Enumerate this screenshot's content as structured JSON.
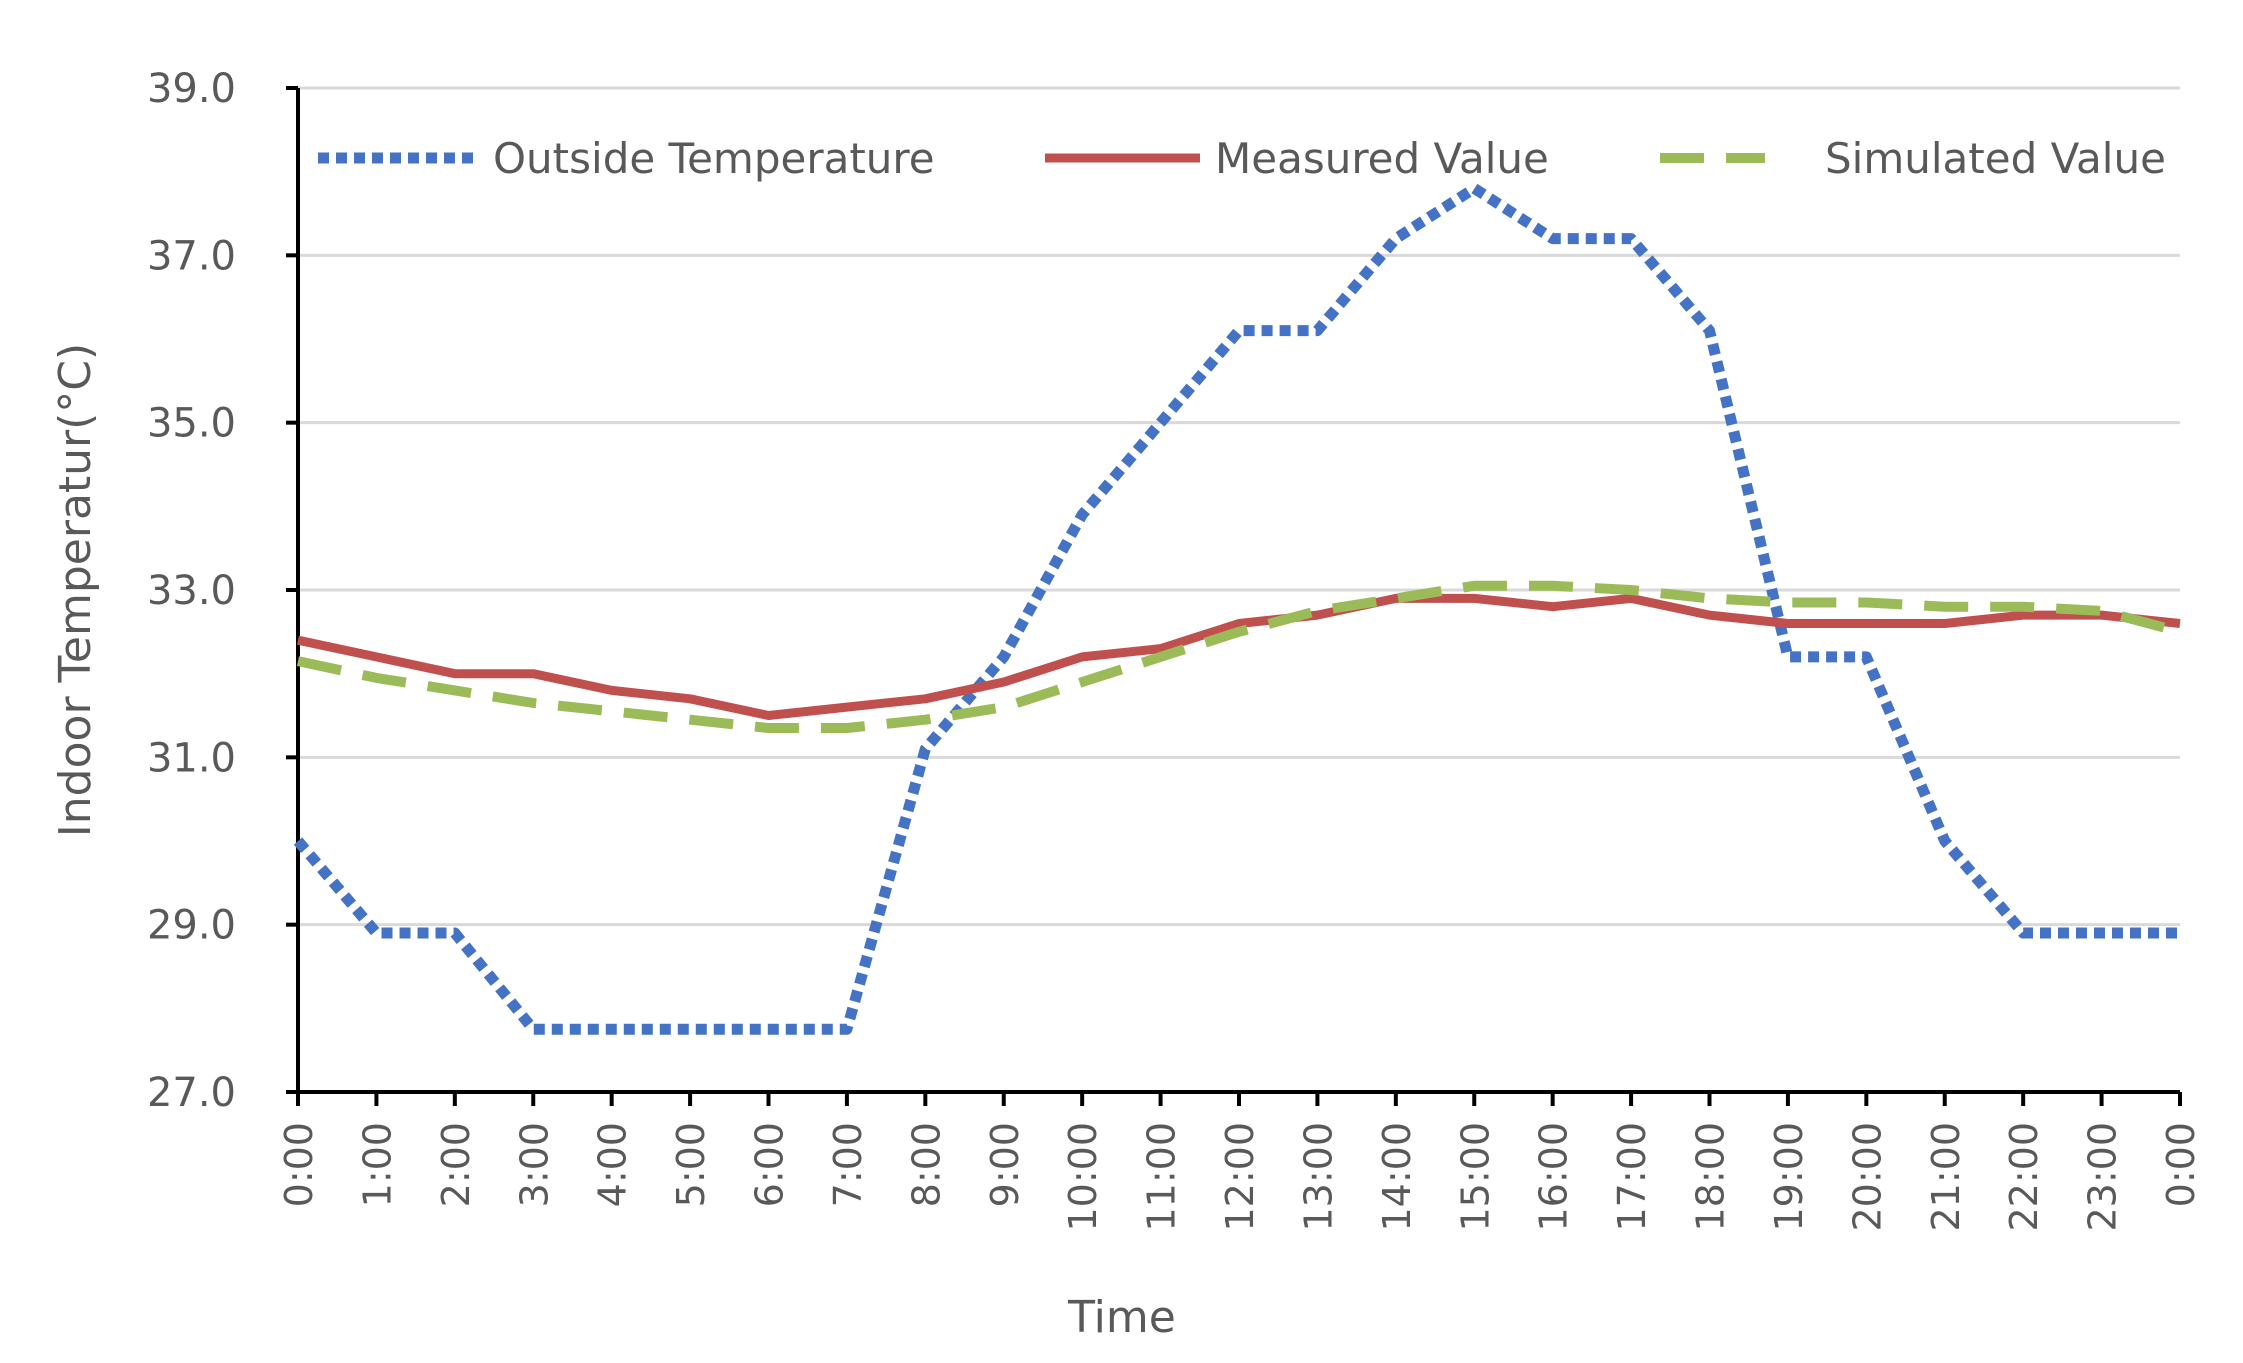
{
  "chart_data": {
    "type": "line",
    "title": "",
    "xlabel": "Time",
    "ylabel": "Indoor Temperatur(°C)",
    "ylim": [
      27.0,
      39.0
    ],
    "ytick_step": 2.0,
    "yticks": [
      "27.0",
      "29.0",
      "31.0",
      "33.0",
      "35.0",
      "37.0",
      "39.0"
    ],
    "grid": true,
    "legend_position": "top",
    "categories": [
      "0:00",
      "1:00",
      "2:00",
      "3:00",
      "4:00",
      "5:00",
      "6:00",
      "7:00",
      "8:00",
      "9:00",
      "10:00",
      "11:00",
      "12:00",
      "13:00",
      "14:00",
      "15:00",
      "16:00",
      "17:00",
      "18:00",
      "19:00",
      "20:00",
      "21:00",
      "22:00",
      "23:00",
      "0:00"
    ],
    "series": [
      {
        "name": "Outside Temperature",
        "color": "#4472C4",
        "style": "dotted",
        "values": [
          30.0,
          28.9,
          28.9,
          27.75,
          27.75,
          27.75,
          27.75,
          27.75,
          31.1,
          32.2,
          33.9,
          35.0,
          36.1,
          36.1,
          37.2,
          37.8,
          37.2,
          37.2,
          36.1,
          32.2,
          32.2,
          30.0,
          28.9,
          28.9,
          28.9
        ]
      },
      {
        "name": "Measured Value",
        "color": "#C0504D",
        "style": "solid",
        "values": [
          32.4,
          32.2,
          32.0,
          32.0,
          31.8,
          31.7,
          31.5,
          31.6,
          31.7,
          31.9,
          32.2,
          32.3,
          32.6,
          32.7,
          32.9,
          32.9,
          32.8,
          32.9,
          32.7,
          32.6,
          32.6,
          32.6,
          32.7,
          32.7,
          32.6
        ]
      },
      {
        "name": "Simulated Value",
        "color": "#9BBB59",
        "style": "dashed",
        "values": [
          32.15,
          31.95,
          31.8,
          31.65,
          31.55,
          31.45,
          31.35,
          31.35,
          31.45,
          31.6,
          31.9,
          32.2,
          32.5,
          32.75,
          32.9,
          33.05,
          33.05,
          33.0,
          32.9,
          32.85,
          32.85,
          32.8,
          32.8,
          32.75,
          32.5
        ]
      }
    ]
  }
}
